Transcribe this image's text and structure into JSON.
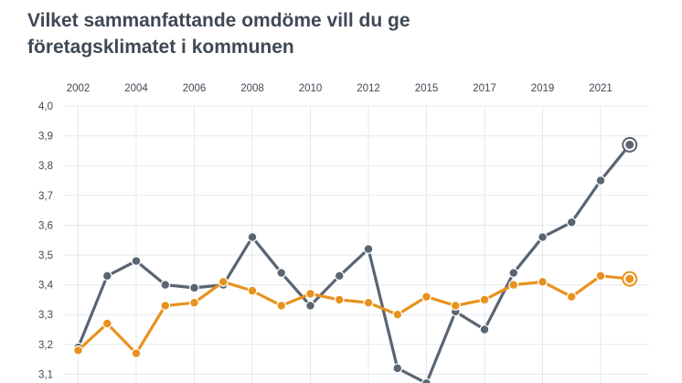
{
  "header": {
    "title_line1": "Vilket sammanfattande omdöme vill du ge",
    "title_line2": "företagsklimatet i kommunen"
  },
  "colors": {
    "series_a": "#5a6572",
    "series_b": "#e8921e",
    "grid": "#e6e8ec",
    "text": "#3f4955"
  },
  "chart_data": {
    "type": "line",
    "title": "Vilket sammanfattande omdöme vill du ge företagsklimatet i kommunen",
    "xlabel": "",
    "ylabel": "",
    "x_tick_labels": [
      "2002",
      "2004",
      "2006",
      "2008",
      "2010",
      "2012",
      "2015",
      "2017",
      "2019",
      "2021"
    ],
    "y_tick_labels": [
      "4,0",
      "3,9",
      "3,8",
      "3,7",
      "3,6",
      "3,5",
      "3,4",
      "3,3",
      "3,2",
      "3,1"
    ],
    "ylim": [
      3.1,
      4.0
    ],
    "grid": true,
    "legend": "none",
    "x": [
      "2002",
      "2003",
      "2004",
      "2005",
      "2006",
      "2007",
      "2008",
      "2009",
      "2010",
      "2011",
      "2012",
      "2013",
      "2015",
      "2016",
      "2017",
      "2018",
      "2019",
      "2020",
      "2021",
      "2022"
    ],
    "series": [
      {
        "color": "#5a6572",
        "values": [
          3.19,
          3.43,
          3.48,
          3.4,
          3.39,
          3.4,
          3.56,
          3.44,
          3.33,
          3.43,
          3.52,
          3.12,
          3.07,
          3.31,
          3.25,
          3.44,
          3.56,
          3.61,
          3.75,
          3.87
        ]
      },
      {
        "color": "#e8921e",
        "values": [
          3.18,
          3.27,
          3.17,
          3.33,
          3.34,
          3.41,
          3.38,
          3.33,
          3.37,
          3.35,
          3.34,
          3.3,
          3.36,
          3.33,
          3.35,
          3.4,
          3.41,
          3.36,
          3.43,
          3.42
        ]
      }
    ]
  }
}
